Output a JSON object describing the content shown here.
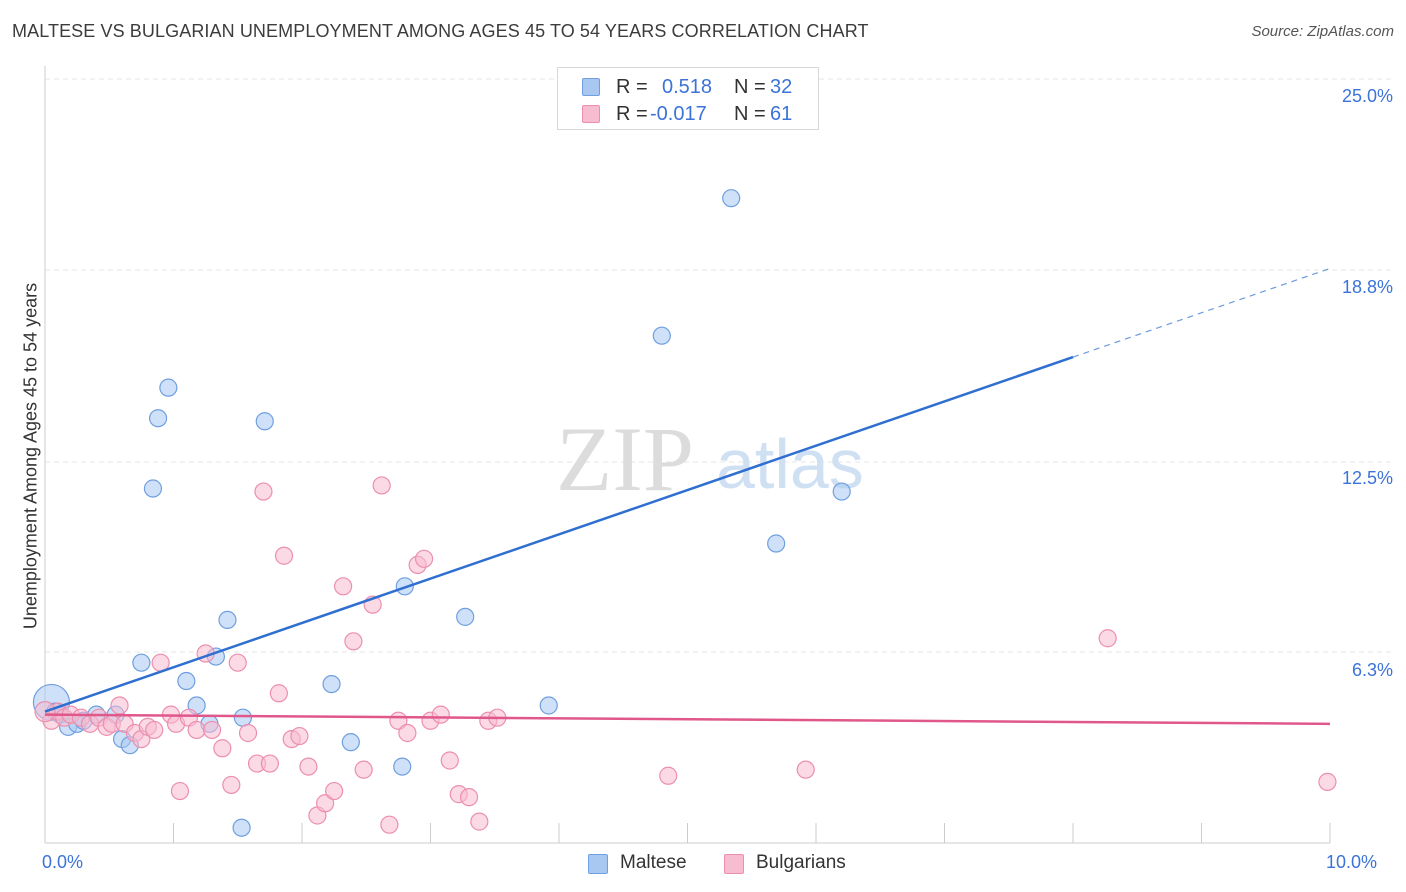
{
  "title": "MALTESE VS BULGARIAN UNEMPLOYMENT AMONG AGES 45 TO 54 YEARS CORRELATION CHART",
  "source": "Source: ZipAtlas.com",
  "watermark": {
    "zip": "ZIP",
    "atlas": "atlas"
  },
  "legend_top": [
    {
      "r_label": "R =",
      "r_value": "0.518",
      "n_label": "N =",
      "n_value": "32",
      "color": "#a8c8f2",
      "border": "#6f9fe0"
    },
    {
      "r_label": "R =",
      "r_value": "-0.017",
      "n_label": "N =",
      "n_value": "61",
      "color": "#f8bcd0",
      "border": "#ec8fae"
    }
  ],
  "legend_bottom": [
    {
      "label": "Maltese",
      "color": "#a8c8f2",
      "border": "#6f9fe0"
    },
    {
      "label": "Bulgarians",
      "color": "#f8bcd0",
      "border": "#ec8fae"
    }
  ],
  "chart_data": {
    "type": "scatter",
    "title": "MALTESE VS BULGARIAN UNEMPLOYMENT AMONG AGES 45 TO 54 YEARS CORRELATION CHART",
    "xlabel": "",
    "ylabel": "Unemployment Among Ages 45 to 54 years",
    "xlim": [
      0,
      10
    ],
    "ylim": [
      0,
      25
    ],
    "x_tick_labels": [
      "0.0%",
      "10.0%"
    ],
    "y_ticks": [
      6.3,
      12.5,
      18.8,
      25.0
    ],
    "y_tick_labels": [
      "6.3%",
      "12.5%",
      "18.8%",
      "25.0%"
    ],
    "grid": true,
    "series": [
      {
        "name": "Maltese",
        "color": "#a8c8f2",
        "stroke": "#6f9fe0",
        "line_color": "#2f6fd0",
        "trend": {
          "x0": 0,
          "y0": 4.3,
          "x1": 8.0,
          "y1": 15.9,
          "dash_to_x": 10.0,
          "dash_to_y": 18.8
        },
        "points": [
          [
            0.05,
            4.6
          ],
          [
            0.08,
            4.3
          ],
          [
            0.12,
            4.2
          ],
          [
            0.18,
            3.8
          ],
          [
            0.25,
            3.9
          ],
          [
            0.3,
            4.0
          ],
          [
            0.4,
            4.2
          ],
          [
            0.55,
            4.2
          ],
          [
            0.6,
            3.4
          ],
          [
            0.66,
            3.2
          ],
          [
            0.75,
            5.9
          ],
          [
            0.84,
            11.6
          ],
          [
            0.88,
            13.9
          ],
          [
            0.96,
            14.9
          ],
          [
            1.1,
            5.3
          ],
          [
            1.18,
            4.5
          ],
          [
            1.28,
            3.9
          ],
          [
            1.33,
            6.1
          ],
          [
            1.42,
            7.3
          ],
          [
            1.53,
            0.5
          ],
          [
            1.54,
            4.1
          ],
          [
            1.71,
            13.8
          ],
          [
            2.23,
            5.2
          ],
          [
            2.38,
            3.3
          ],
          [
            2.78,
            2.5
          ],
          [
            2.8,
            8.4
          ],
          [
            3.27,
            7.4
          ],
          [
            3.92,
            4.5
          ],
          [
            4.8,
            16.6
          ],
          [
            5.34,
            21.1
          ],
          [
            5.69,
            9.8
          ],
          [
            6.2,
            11.5
          ]
        ]
      },
      {
        "name": "Bulgarians",
        "color": "#f8bcd0",
        "stroke": "#ec8fae",
        "line_color": "#e0578a",
        "trend": {
          "x0": 0,
          "y0": 4.2,
          "x1": 10.0,
          "y1": 3.9
        },
        "points": [
          [
            0.05,
            4.0
          ],
          [
            0.1,
            4.3
          ],
          [
            0.15,
            4.1
          ],
          [
            0.2,
            4.2
          ],
          [
            0.28,
            4.1
          ],
          [
            0.35,
            3.9
          ],
          [
            0.42,
            4.1
          ],
          [
            0.48,
            3.8
          ],
          [
            0.52,
            3.9
          ],
          [
            0.58,
            4.5
          ],
          [
            0.62,
            3.9
          ],
          [
            0.7,
            3.6
          ],
          [
            0.75,
            3.4
          ],
          [
            0.8,
            3.8
          ],
          [
            0.85,
            3.7
          ],
          [
            0.9,
            5.9
          ],
          [
            0.98,
            4.2
          ],
          [
            1.02,
            3.9
          ],
          [
            1.05,
            1.7
          ],
          [
            1.12,
            4.1
          ],
          [
            1.18,
            3.7
          ],
          [
            1.25,
            6.2
          ],
          [
            1.3,
            3.7
          ],
          [
            1.38,
            3.1
          ],
          [
            1.45,
            1.9
          ],
          [
            1.5,
            5.9
          ],
          [
            1.58,
            3.6
          ],
          [
            1.65,
            2.6
          ],
          [
            1.7,
            11.5
          ],
          [
            1.75,
            2.6
          ],
          [
            1.82,
            4.9
          ],
          [
            1.86,
            9.4
          ],
          [
            1.92,
            3.4
          ],
          [
            1.98,
            3.5
          ],
          [
            2.05,
            2.5
          ],
          [
            2.12,
            0.9
          ],
          [
            2.18,
            1.3
          ],
          [
            2.25,
            1.7
          ],
          [
            2.32,
            8.4
          ],
          [
            2.4,
            6.6
          ],
          [
            2.48,
            2.4
          ],
          [
            2.55,
            7.8
          ],
          [
            2.62,
            11.7
          ],
          [
            2.68,
            0.6
          ],
          [
            2.75,
            4.0
          ],
          [
            2.82,
            3.6
          ],
          [
            2.9,
            9.1
          ],
          [
            2.95,
            9.3
          ],
          [
            3.0,
            4.0
          ],
          [
            3.08,
            4.2
          ],
          [
            3.15,
            2.7
          ],
          [
            3.22,
            1.6
          ],
          [
            3.3,
            1.5
          ],
          [
            3.38,
            0.7
          ],
          [
            3.45,
            4.0
          ],
          [
            3.52,
            4.1
          ],
          [
            4.85,
            2.2
          ],
          [
            5.92,
            2.4
          ],
          [
            8.27,
            6.7
          ],
          [
            9.98,
            2.0
          ],
          [
            0.0,
            4.3
          ]
        ]
      }
    ]
  }
}
